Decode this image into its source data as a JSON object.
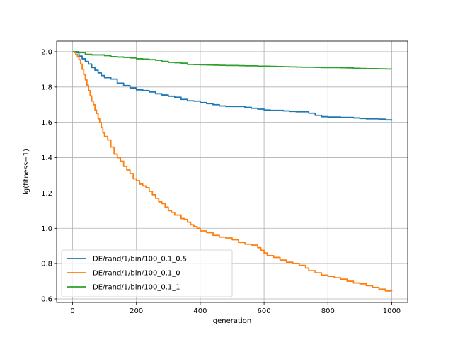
{
  "chart_data": {
    "type": "line",
    "title": "",
    "xlabel": "generation",
    "ylabel": "lg(fitness+1)",
    "xlim": [
      -50,
      1050
    ],
    "ylim": [
      0.58,
      2.06
    ],
    "xticks": [
      0,
      200,
      400,
      600,
      800,
      1000
    ],
    "yticks": [
      0.6,
      0.8,
      1.0,
      1.2,
      1.4,
      1.6,
      1.8,
      2.0
    ],
    "grid": true,
    "legend_position": "lower-left",
    "series": [
      {
        "name": "DE/rand/1/bin/100_0.1_0.5",
        "color": "#1f77b4",
        "points": [
          [
            0,
            2.0
          ],
          [
            10,
            1.995
          ],
          [
            20,
            1.975
          ],
          [
            30,
            1.96
          ],
          [
            40,
            1.945
          ],
          [
            50,
            1.93
          ],
          [
            60,
            1.91
          ],
          [
            70,
            1.895
          ],
          [
            80,
            1.88
          ],
          [
            90,
            1.865
          ],
          [
            100,
            1.853
          ],
          [
            120,
            1.845
          ],
          [
            140,
            1.822
          ],
          [
            160,
            1.808
          ],
          [
            180,
            1.795
          ],
          [
            200,
            1.784
          ],
          [
            220,
            1.78
          ],
          [
            240,
            1.772
          ],
          [
            260,
            1.762
          ],
          [
            280,
            1.755
          ],
          [
            300,
            1.748
          ],
          [
            320,
            1.742
          ],
          [
            340,
            1.73
          ],
          [
            360,
            1.722
          ],
          [
            380,
            1.72
          ],
          [
            400,
            1.712
          ],
          [
            420,
            1.706
          ],
          [
            440,
            1.7
          ],
          [
            460,
            1.693
          ],
          [
            480,
            1.69
          ],
          [
            500,
            1.69
          ],
          [
            520,
            1.69
          ],
          [
            540,
            1.685
          ],
          [
            560,
            1.68
          ],
          [
            580,
            1.675
          ],
          [
            600,
            1.67
          ],
          [
            620,
            1.668
          ],
          [
            640,
            1.668
          ],
          [
            660,
            1.665
          ],
          [
            680,
            1.662
          ],
          [
            700,
            1.66
          ],
          [
            720,
            1.66
          ],
          [
            740,
            1.652
          ],
          [
            760,
            1.64
          ],
          [
            780,
            1.632
          ],
          [
            800,
            1.63
          ],
          [
            820,
            1.63
          ],
          [
            840,
            1.628
          ],
          [
            860,
            1.628
          ],
          [
            880,
            1.625
          ],
          [
            900,
            1.622
          ],
          [
            920,
            1.62
          ],
          [
            940,
            1.62
          ],
          [
            960,
            1.618
          ],
          [
            980,
            1.614
          ],
          [
            1000,
            1.61
          ]
        ]
      },
      {
        "name": "DE/rand/1/bin/100_0.1_0",
        "color": "#ff7f0e",
        "points": [
          [
            0,
            2.0
          ],
          [
            5,
            1.995
          ],
          [
            10,
            1.985
          ],
          [
            15,
            1.97
          ],
          [
            20,
            1.955
          ],
          [
            25,
            1.93
          ],
          [
            30,
            1.9
          ],
          [
            35,
            1.87
          ],
          [
            40,
            1.84
          ],
          [
            45,
            1.81
          ],
          [
            50,
            1.78
          ],
          [
            55,
            1.75
          ],
          [
            60,
            1.72
          ],
          [
            65,
            1.7
          ],
          [
            70,
            1.67
          ],
          [
            75,
            1.65
          ],
          [
            80,
            1.62
          ],
          [
            85,
            1.6
          ],
          [
            90,
            1.57
          ],
          [
            95,
            1.54
          ],
          [
            100,
            1.52
          ],
          [
            110,
            1.5
          ],
          [
            120,
            1.46
          ],
          [
            130,
            1.42
          ],
          [
            140,
            1.4
          ],
          [
            150,
            1.38
          ],
          [
            160,
            1.35
          ],
          [
            170,
            1.33
          ],
          [
            180,
            1.31
          ],
          [
            190,
            1.28
          ],
          [
            200,
            1.27
          ],
          [
            210,
            1.25
          ],
          [
            220,
            1.24
          ],
          [
            230,
            1.23
          ],
          [
            240,
            1.21
          ],
          [
            250,
            1.19
          ],
          [
            260,
            1.17
          ],
          [
            270,
            1.15
          ],
          [
            280,
            1.14
          ],
          [
            290,
            1.12
          ],
          [
            300,
            1.1
          ],
          [
            310,
            1.09
          ],
          [
            320,
            1.075
          ],
          [
            340,
            1.055
          ],
          [
            350,
            1.05
          ],
          [
            360,
            1.035
          ],
          [
            370,
            1.02
          ],
          [
            380,
            1.01
          ],
          [
            390,
            1.0
          ],
          [
            400,
            0.985
          ],
          [
            420,
            0.975
          ],
          [
            440,
            0.96
          ],
          [
            460,
            0.95
          ],
          [
            480,
            0.945
          ],
          [
            500,
            0.935
          ],
          [
            520,
            0.92
          ],
          [
            540,
            0.91
          ],
          [
            560,
            0.905
          ],
          [
            580,
            0.89
          ],
          [
            590,
            0.875
          ],
          [
            600,
            0.86
          ],
          [
            610,
            0.845
          ],
          [
            630,
            0.835
          ],
          [
            650,
            0.82
          ],
          [
            670,
            0.808
          ],
          [
            690,
            0.8
          ],
          [
            710,
            0.79
          ],
          [
            730,
            0.775
          ],
          [
            740,
            0.76
          ],
          [
            760,
            0.748
          ],
          [
            780,
            0.735
          ],
          [
            800,
            0.728
          ],
          [
            820,
            0.72
          ],
          [
            840,
            0.712
          ],
          [
            860,
            0.7
          ],
          [
            880,
            0.69
          ],
          [
            900,
            0.685
          ],
          [
            920,
            0.675
          ],
          [
            940,
            0.665
          ],
          [
            960,
            0.655
          ],
          [
            980,
            0.645
          ],
          [
            1000,
            0.643
          ]
        ]
      },
      {
        "name": "DE/rand/1/bin/100_0.1_1",
        "color": "#2ca02c",
        "points": [
          [
            0,
            2.0
          ],
          [
            20,
            1.995
          ],
          [
            40,
            1.985
          ],
          [
            60,
            1.982
          ],
          [
            80,
            1.982
          ],
          [
            100,
            1.978
          ],
          [
            120,
            1.972
          ],
          [
            140,
            1.97
          ],
          [
            160,
            1.968
          ],
          [
            180,
            1.965
          ],
          [
            200,
            1.96
          ],
          [
            220,
            1.958
          ],
          [
            240,
            1.955
          ],
          [
            260,
            1.952
          ],
          [
            280,
            1.945
          ],
          [
            300,
            1.94
          ],
          [
            320,
            1.938
          ],
          [
            340,
            1.935
          ],
          [
            360,
            1.928
          ],
          [
            380,
            1.927
          ],
          [
            400,
            1.926
          ],
          [
            420,
            1.925
          ],
          [
            440,
            1.924
          ],
          [
            460,
            1.923
          ],
          [
            480,
            1.922
          ],
          [
            500,
            1.922
          ],
          [
            520,
            1.921
          ],
          [
            540,
            1.92
          ],
          [
            560,
            1.92
          ],
          [
            580,
            1.918
          ],
          [
            600,
            1.918
          ],
          [
            620,
            1.917
          ],
          [
            640,
            1.916
          ],
          [
            660,
            1.915
          ],
          [
            680,
            1.914
          ],
          [
            700,
            1.913
          ],
          [
            720,
            1.912
          ],
          [
            740,
            1.912
          ],
          [
            760,
            1.911
          ],
          [
            780,
            1.91
          ],
          [
            800,
            1.91
          ],
          [
            820,
            1.91
          ],
          [
            840,
            1.909
          ],
          [
            860,
            1.908
          ],
          [
            880,
            1.906
          ],
          [
            900,
            1.905
          ],
          [
            920,
            1.904
          ],
          [
            940,
            1.904
          ],
          [
            960,
            1.903
          ],
          [
            980,
            1.902
          ],
          [
            1000,
            1.902
          ]
        ]
      }
    ]
  }
}
